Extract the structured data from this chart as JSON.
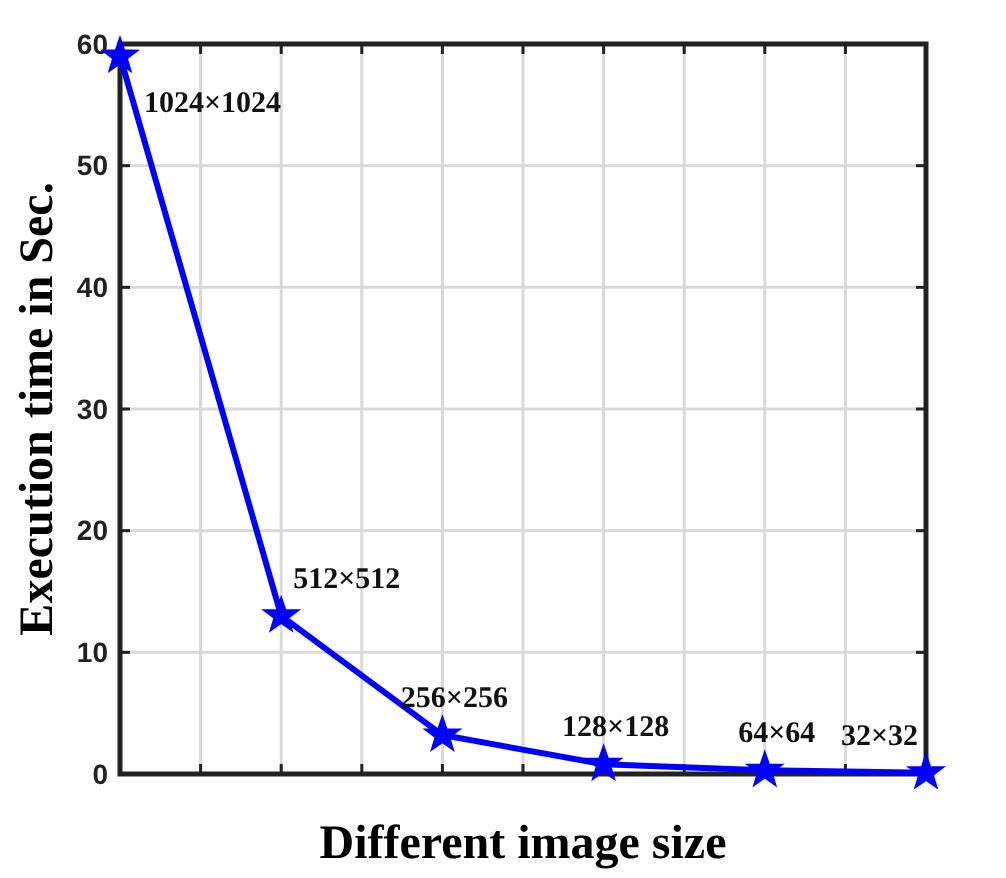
{
  "chart_data": {
    "type": "line",
    "xlabel": "Different image size",
    "ylabel": "Execution time in Sec.",
    "categories": [
      null,
      null,
      null,
      null,
      null,
      null
    ],
    "series": [
      {
        "color": "#0000ff",
        "values": [
          59,
          13,
          3.2,
          0.8,
          0.3,
          0.1
        ]
      }
    ],
    "annotations": [
      "1024×1024",
      "512×512",
      "256×256",
      "128×128",
      "64×64",
      "32×32"
    ],
    "ylim": [
      0,
      60
    ],
    "yticks": [
      0,
      10,
      20,
      30,
      40,
      50,
      60
    ],
    "grid": true,
    "marker": "star",
    "line_style": "solid",
    "tick_labels": "y"
  }
}
